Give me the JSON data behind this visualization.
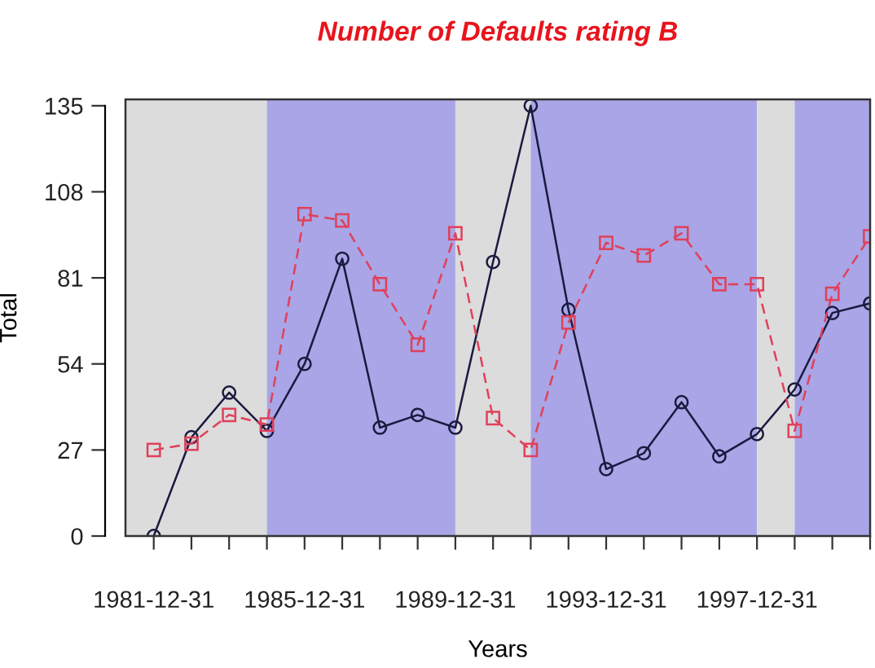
{
  "chart_data": {
    "type": "line",
    "title": "Number of Defaults rating B",
    "xlabel": "Years",
    "ylabel": "Total",
    "x": [
      "1981-12-31",
      "1982-12-31",
      "1983-12-31",
      "1984-12-31",
      "1985-12-31",
      "1986-12-31",
      "1987-12-31",
      "1988-12-31",
      "1989-12-31",
      "1990-12-31",
      "1991-12-31",
      "1992-12-31",
      "1993-12-31",
      "1994-12-31",
      "1995-12-31",
      "1996-12-31",
      "1997-12-31",
      "1998-12-31",
      "1999-12-31",
      "2000-12-31"
    ],
    "series": [
      {
        "color": "#1a1a40",
        "marker": "circle",
        "line_style": "solid",
        "values": [
          0,
          31,
          45,
          33,
          54,
          87,
          34,
          38,
          34,
          86,
          135,
          71,
          21,
          26,
          42,
          25,
          32,
          46,
          70,
          73
        ]
      },
      {
        "color": "#e0405a",
        "marker": "square",
        "line_style": "dashed",
        "values": [
          27,
          29,
          38,
          35,
          101,
          99,
          79,
          60,
          95,
          37,
          27,
          67,
          92,
          88,
          95,
          79,
          79,
          33,
          76,
          94
        ]
      }
    ],
    "xlim": [
      "1981-04-01",
      "2000-12-31"
    ],
    "xticks": [
      {
        "value": "1981-12-31",
        "label": "1981-12-31"
      },
      {
        "value": "1982-12-31",
        "label": null
      },
      {
        "value": "1983-12-31",
        "label": null
      },
      {
        "value": "1984-12-31",
        "label": null
      },
      {
        "value": "1985-12-31",
        "label": "1985-12-31"
      },
      {
        "value": "1986-12-31",
        "label": null
      },
      {
        "value": "1987-12-31",
        "label": null
      },
      {
        "value": "1988-12-31",
        "label": null
      },
      {
        "value": "1989-12-31",
        "label": "1989-12-31"
      },
      {
        "value": "1990-12-31",
        "label": null
      },
      {
        "value": "1991-12-31",
        "label": null
      },
      {
        "value": "1992-12-31",
        "label": null
      },
      {
        "value": "1993-12-31",
        "label": "1993-12-31"
      },
      {
        "value": "1994-12-31",
        "label": null
      },
      {
        "value": "1995-12-31",
        "label": null
      },
      {
        "value": "1996-12-31",
        "label": null
      },
      {
        "value": "1997-12-31",
        "label": "1997-12-31"
      },
      {
        "value": "1998-12-31",
        "label": null
      },
      {
        "value": "1999-12-31",
        "label": null
      },
      {
        "value": "2000-12-31",
        "label": null
      }
    ],
    "ylim": [
      0,
      137
    ],
    "yticks": [
      0,
      27,
      54,
      81,
      108,
      135
    ],
    "bands": [
      {
        "axis": "x",
        "from": "1981-04-01",
        "to": "1984-12-31",
        "color": "#dcdcdc"
      },
      {
        "axis": "x",
        "from": "1984-12-31",
        "to": "1989-12-31",
        "color": "#a9a5e6"
      },
      {
        "axis": "x",
        "from": "1989-12-31",
        "to": "1991-12-31",
        "color": "#dcdcdc"
      },
      {
        "axis": "x",
        "from": "1991-12-31",
        "to": "1997-12-31",
        "color": "#a9a5e6"
      },
      {
        "axis": "x",
        "from": "1997-12-31",
        "to": "1998-12-31",
        "color": "#dcdcdc"
      },
      {
        "axis": "x",
        "from": "1998-12-31",
        "to": "2000-12-31",
        "color": "#a9a5e6"
      }
    ],
    "grid": false
  }
}
